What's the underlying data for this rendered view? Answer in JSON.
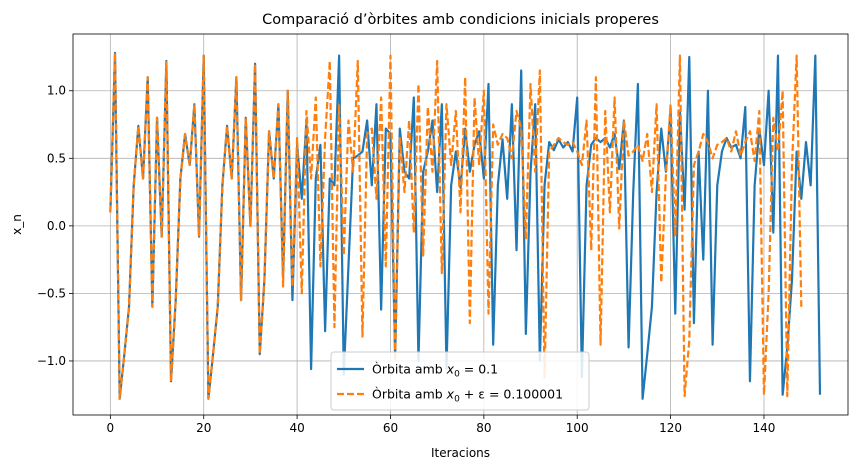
{
  "chart_data": {
    "type": "line",
    "title": "Comparació d’òrbites amb condicions inicials properes",
    "xlabel": "Iteracions",
    "ylabel": "x_n",
    "xlim": [
      -8,
      158
    ],
    "ylim": [
      -1.4,
      1.42
    ],
    "xticks": [
      0,
      20,
      40,
      60,
      80,
      100,
      120,
      140
    ],
    "yticks": [
      -1.0,
      -0.5,
      0.0,
      0.5,
      1.0
    ],
    "xtick_labels": [
      "0",
      "20",
      "40",
      "60",
      "80",
      "100",
      "120",
      "140"
    ],
    "ytick_labels": [
      "−1.0",
      "−0.5",
      "0.0",
      "0.5",
      "1.0"
    ],
    "grid": true,
    "legend_position": "lower-center",
    "series": [
      {
        "name": "Òrbita amb x₀ = 0.1",
        "legend_prefix": "Òrbita amb ",
        "legend_math": "x",
        "legend_sub": "0",
        "legend_suffix": " = 0.1",
        "color": "#1f77b4",
        "style": "solid",
        "x_start": 0,
        "values": [
          0.1,
          1.28,
          -1.28,
          -0.95,
          -0.6,
          0.3,
          0.74,
          0.35,
          1.1,
          -0.6,
          0.8,
          -0.08,
          1.22,
          -1.15,
          -0.55,
          0.35,
          0.68,
          0.45,
          0.9,
          -0.08,
          1.26,
          -1.28,
          -0.95,
          -0.6,
          0.3,
          0.74,
          0.35,
          1.1,
          -0.55,
          0.8,
          0.0,
          1.2,
          -0.95,
          -0.4,
          0.7,
          0.35,
          0.9,
          -0.38,
          1.0,
          -0.55,
          0.6,
          0.2,
          0.78,
          -1.06,
          0.35,
          0.6,
          -0.78,
          0.35,
          0.3,
          1.26,
          -1.1,
          -0.3,
          0.5,
          0.52,
          0.55,
          0.78,
          0.3,
          0.9,
          -0.62,
          0.72,
          0.68,
          -0.98,
          0.72,
          0.4,
          0.35,
          0.95,
          -1.0,
          0.4,
          0.55,
          0.78,
          0.25,
          0.9,
          -1.06,
          0.3,
          0.55,
          0.28,
          0.72,
          0.4,
          0.6,
          0.7,
          0.35,
          1.05,
          -0.88,
          0.3,
          0.64,
          0.2,
          0.9,
          -0.18,
          1.15,
          -0.8,
          0.4,
          0.9,
          -1.0,
          0.3,
          0.62,
          0.56,
          0.64,
          0.58,
          0.62,
          0.55,
          0.95,
          -1.12,
          0.3,
          0.6,
          0.65,
          0.62,
          0.65,
          0.58,
          0.68,
          0.42,
          0.78,
          -0.9,
          0.25,
          1.05,
          -1.28,
          -0.95,
          -0.6,
          0.25,
          0.72,
          0.4,
          0.85,
          -0.65,
          0.85,
          0.12,
          1.25,
          -0.72,
          0.55,
          -0.25,
          1.0,
          -0.88,
          0.3,
          0.55,
          0.65,
          0.58,
          0.6,
          0.5,
          0.88,
          -1.15,
          0.3,
          0.72,
          0.45,
          1.0,
          -0.05,
          1.26,
          -1.25,
          -0.9,
          -0.4,
          0.55,
          0.2,
          0.62,
          0.3,
          1.26,
          -1.25
        ]
      },
      {
        "name": "Òrbita amb x₀ + ε = 0.100001",
        "legend_prefix": "Òrbita amb ",
        "legend_math": "x",
        "legend_sub": "0",
        "legend_suffix": " + ε = 0.100001",
        "color": "#ff7f0e",
        "style": "dashed",
        "x_start": 0,
        "values": [
          0.1,
          1.28,
          -1.28,
          -0.95,
          -0.6,
          0.3,
          0.74,
          0.35,
          1.1,
          -0.6,
          0.8,
          -0.08,
          1.22,
          -1.15,
          -0.55,
          0.35,
          0.68,
          0.45,
          0.9,
          -0.08,
          1.26,
          -1.28,
          -0.95,
          -0.6,
          0.3,
          0.74,
          0.35,
          1.1,
          -0.55,
          0.8,
          0.0,
          1.2,
          -0.95,
          -0.4,
          0.7,
          0.35,
          0.9,
          -0.45,
          1.0,
          -0.45,
          0.65,
          -0.5,
          0.85,
          0.35,
          0.95,
          -0.3,
          0.65,
          1.22,
          -0.75,
          0.9,
          -0.22,
          0.78,
          0.4,
          1.22,
          -0.82,
          0.68,
          0.72,
          0.2,
          0.95,
          -0.3,
          1.26,
          -1.0,
          0.65,
          0.25,
          0.78,
          -0.05,
          1.05,
          -0.22,
          0.88,
          0.4,
          1.22,
          -0.35,
          0.9,
          0.45,
          0.85,
          0.1,
          1.1,
          -0.72,
          0.95,
          0.45,
          1.0,
          -0.65,
          0.75,
          0.6,
          0.68,
          0.65,
          0.5,
          0.85,
          0.72,
          -0.1,
          1.05,
          0.4,
          1.15,
          -1.12,
          0.55,
          0.6,
          0.65,
          0.62,
          0.6,
          0.62,
          0.55,
          0.45,
          0.78,
          -0.18,
          1.1,
          -0.88,
          0.85,
          0.1,
          0.95,
          -0.02,
          0.78,
          0.52,
          0.55,
          0.6,
          0.48,
          0.68,
          0.25,
          0.9,
          -0.42,
          0.38,
          0.9,
          -0.08,
          1.26,
          -1.26,
          -0.85,
          0.45,
          0.55,
          0.68,
          0.62,
          0.5,
          0.6,
          0.62,
          0.65,
          0.55,
          0.7,
          0.52,
          0.62,
          0.7,
          0.48,
          0.85,
          -1.25,
          -0.5,
          0.8,
          0.55,
          1.0,
          -1.26,
          0.45,
          1.26,
          -0.6
        ]
      }
    ]
  }
}
